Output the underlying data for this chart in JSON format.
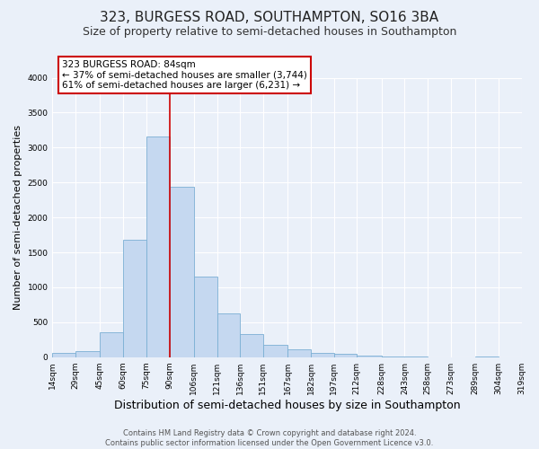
{
  "title": "323, BURGESS ROAD, SOUTHAMPTON, SO16 3BA",
  "subtitle": "Size of property relative to semi-detached houses in Southampton",
  "xlabel": "Distribution of semi-detached houses by size in Southampton",
  "ylabel": "Number of semi-detached properties",
  "footer_lines": [
    "Contains HM Land Registry data © Crown copyright and database right 2024.",
    "Contains public sector information licensed under the Open Government Licence v3.0."
  ],
  "bin_edges": [
    14,
    29,
    45,
    60,
    75,
    90,
    106,
    121,
    136,
    151,
    167,
    182,
    197,
    212,
    228,
    243,
    258,
    273,
    289,
    304,
    319
  ],
  "bar_heights": [
    55,
    80,
    360,
    1680,
    3160,
    2440,
    1150,
    630,
    330,
    175,
    110,
    60,
    45,
    25,
    10,
    5,
    2,
    2,
    15,
    2
  ],
  "bar_color": "#c5d8f0",
  "bar_edge_color": "#7bafd4",
  "property_size": 84,
  "vline_x": 90,
  "vline_color": "#cc0000",
  "annotation_text": "323 BURGESS ROAD: 84sqm\n← 37% of semi-detached houses are smaller (3,744)\n61% of semi-detached houses are larger (6,231) →",
  "annotation_box_color": "white",
  "annotation_box_edge_color": "#cc0000",
  "ylim": [
    0,
    4000
  ],
  "yticks": [
    0,
    500,
    1000,
    1500,
    2000,
    2500,
    3000,
    3500,
    4000
  ],
  "bg_color": "#eaf0f9",
  "plot_bg_color": "#eaf0f9",
  "grid_color": "white",
  "title_fontsize": 11,
  "subtitle_fontsize": 9,
  "xlabel_fontsize": 9,
  "ylabel_fontsize": 8,
  "tick_fontsize": 6.5,
  "footer_fontsize": 6
}
